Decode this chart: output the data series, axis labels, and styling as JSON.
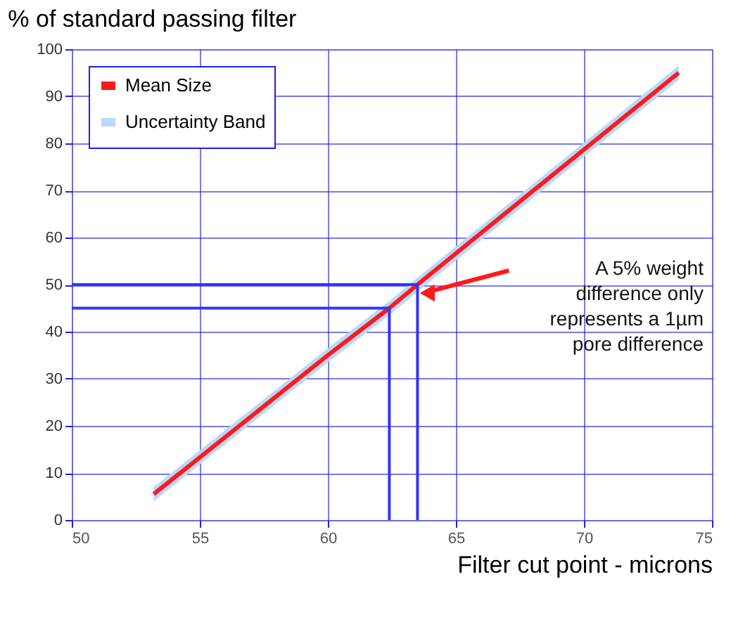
{
  "chart_data": {
    "type": "line",
    "title": "% of standard passing filter",
    "xlabel": "Filter cut point - microns",
    "series": [
      {
        "name": "Mean Size",
        "color": "#ff1a1a",
        "x": [
          53.2,
          60,
          62.4,
          63.5,
          73.7
        ],
        "values": [
          5.5,
          35,
          45,
          50,
          95
        ],
        "lower": [
          4.0,
          33.5,
          43.5,
          48.5,
          93.5
        ],
        "upper": [
          7.0,
          36.5,
          46.5,
          51.5,
          96.5
        ]
      },
      {
        "name": "Uncertainty Band",
        "type": "area",
        "color": "#b8d8ff"
      },
      {
        "color": "#3333ff",
        "x": [
          50,
          63.5,
          63.5
        ],
        "values": [
          50,
          50,
          0
        ]
      },
      {
        "color": "#3333ff",
        "x": [
          50,
          62.4,
          62.4
        ],
        "values": [
          45,
          45,
          0
        ]
      }
    ],
    "annotations": [
      "A 5% weight\ndifference only\nrepresents a 1µm\npore difference"
    ],
    "xlim": [
      50,
      75
    ],
    "xticks": [
      50,
      55,
      60,
      65,
      70,
      75
    ],
    "ylim": [
      0,
      100
    ],
    "yticks": [
      0,
      10,
      20,
      30,
      40,
      50,
      60,
      70,
      80,
      90,
      100
    ],
    "grid": true,
    "legend": "top left",
    "line_style": "solid",
    "marker": "none"
  }
}
